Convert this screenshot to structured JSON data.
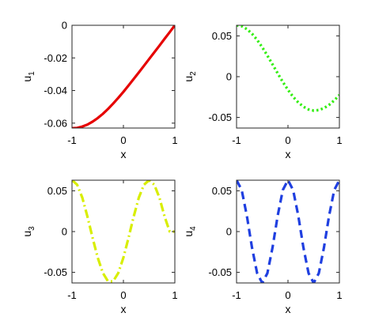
{
  "chart_data": [
    {
      "type": "line",
      "title": "",
      "xlabel": "x",
      "ylabel": "u",
      "ylabel_sub": "1",
      "xlim": [
        -1,
        1
      ],
      "ylim": [
        -0.063,
        0
      ],
      "xticks": [
        -1,
        0,
        1
      ],
      "xtick_labels": [
        "-1",
        "0",
        "1"
      ],
      "yticks": [
        0,
        -0.02,
        -0.04,
        -0.06
      ],
      "ytick_labels": [
        "0",
        "-0.02",
        "-0.04",
        "-0.06"
      ],
      "grid": false,
      "series": [
        {
          "color": "#e60000",
          "line_style": "solid",
          "x": [
            -1,
            -0.9,
            -0.8,
            -0.7,
            -0.6,
            -0.5,
            -0.4,
            -0.3,
            -0.2,
            -0.1,
            0,
            0.1,
            0.2,
            0.3,
            0.4,
            0.5,
            0.6,
            0.7,
            0.8,
            0.9,
            1
          ],
          "y": [
            -0.0631,
            -0.0629,
            -0.0621,
            -0.0609,
            -0.0591,
            -0.0569,
            -0.0543,
            -0.0513,
            -0.048,
            -0.0445,
            -0.0408,
            -0.0369,
            -0.0329,
            -0.0289,
            -0.0248,
            -0.0207,
            -0.0166,
            -0.0125,
            -0.0083,
            -0.0042,
            0
          ]
        }
      ]
    },
    {
      "type": "line",
      "title": "",
      "xlabel": "x",
      "ylabel": "u",
      "ylabel_sub": "2",
      "xlim": [
        -1,
        1
      ],
      "ylim": [
        -0.063,
        0.063
      ],
      "xticks": [
        -1,
        0,
        1
      ],
      "xtick_labels": [
        "-1",
        "0",
        "1"
      ],
      "yticks": [
        0.05,
        0,
        -0.05
      ],
      "ytick_labels": [
        "0.05",
        "0",
        "-0.05"
      ],
      "grid": false,
      "series": [
        {
          "color": "#33ee11",
          "line_style": "dotted",
          "x": [
            -1,
            -0.9,
            -0.8,
            -0.7,
            -0.6,
            -0.5,
            -0.4,
            -0.3,
            -0.2,
            -0.1,
            0,
            0.1,
            0.2,
            0.3,
            0.4,
            0.5,
            0.6,
            0.7,
            0.8,
            0.9,
            1
          ],
          "y": [
            0.0631,
            0.0619,
            0.0584,
            0.0527,
            0.0452,
            0.036,
            0.0258,
            0.015,
            0.0041,
            -0.0065,
            -0.0162,
            -0.0247,
            -0.0316,
            -0.0368,
            -0.0402,
            -0.0416,
            -0.041,
            -0.0386,
            -0.0346,
            -0.0291,
            -0.0225
          ]
        }
      ]
    },
    {
      "type": "line",
      "title": "",
      "xlabel": "x",
      "ylabel": "u",
      "ylabel_sub": "3",
      "xlim": [
        -1,
        1
      ],
      "ylim": [
        -0.063,
        0.063
      ],
      "xticks": [
        -1,
        0,
        1
      ],
      "xtick_labels": [
        "-1",
        "0",
        "1"
      ],
      "yticks": [
        0.05,
        0,
        -0.05
      ],
      "ytick_labels": [
        "0.05",
        "0",
        "-0.05"
      ],
      "grid": false,
      "series": [
        {
          "color": "#d8ee00",
          "line_style": "dashdot",
          "x": [
            -1,
            -0.9,
            -0.8,
            -0.7,
            -0.6,
            -0.5,
            -0.4,
            -0.3,
            -0.2,
            -0.1,
            0,
            0.1,
            0.2,
            0.3,
            0.4,
            0.5,
            0.6,
            0.7,
            0.8,
            0.9,
            1
          ],
          "y": [
            0.0631,
            0.0575,
            0.0417,
            0.0185,
            -0.0075,
            -0.0319,
            -0.0507,
            -0.061,
            -0.061,
            -0.0508,
            -0.0319,
            -0.0075,
            0.0185,
            0.0417,
            0.0575,
            0.0631,
            0.0575,
            0.0417,
            0.0185,
            0,
            0
          ]
        }
      ]
    },
    {
      "type": "line",
      "title": "",
      "xlabel": "x",
      "ylabel": "u",
      "ylabel_sub": "4",
      "xlim": [
        -1,
        1
      ],
      "ylim": [
        -0.063,
        0.063
      ],
      "xticks": [
        -1,
        0,
        1
      ],
      "xtick_labels": [
        "-1",
        "0",
        "1"
      ],
      "yticks": [
        0.05,
        0,
        -0.05
      ],
      "ytick_labels": [
        "0.05",
        "0",
        "-0.05"
      ],
      "grid": false,
      "series": [
        {
          "color": "#1f3fe0",
          "line_style": "dashed",
          "x": [
            -1,
            -0.9,
            -0.8,
            -0.7,
            -0.6,
            -0.5,
            -0.4,
            -0.3,
            -0.2,
            -0.1,
            0,
            0.1,
            0.2,
            0.3,
            0.4,
            0.5,
            0.6,
            0.7,
            0.8,
            0.9,
            1
          ],
          "y": [
            0.0631,
            0.051,
            0.0195,
            -0.0195,
            -0.051,
            -0.0631,
            -0.051,
            -0.0195,
            0.0195,
            0.051,
            0.0631,
            0.051,
            0.0195,
            -0.0195,
            -0.051,
            -0.0631,
            -0.051,
            -0.0195,
            0.0195,
            0.051,
            0.0631
          ]
        }
      ]
    }
  ]
}
